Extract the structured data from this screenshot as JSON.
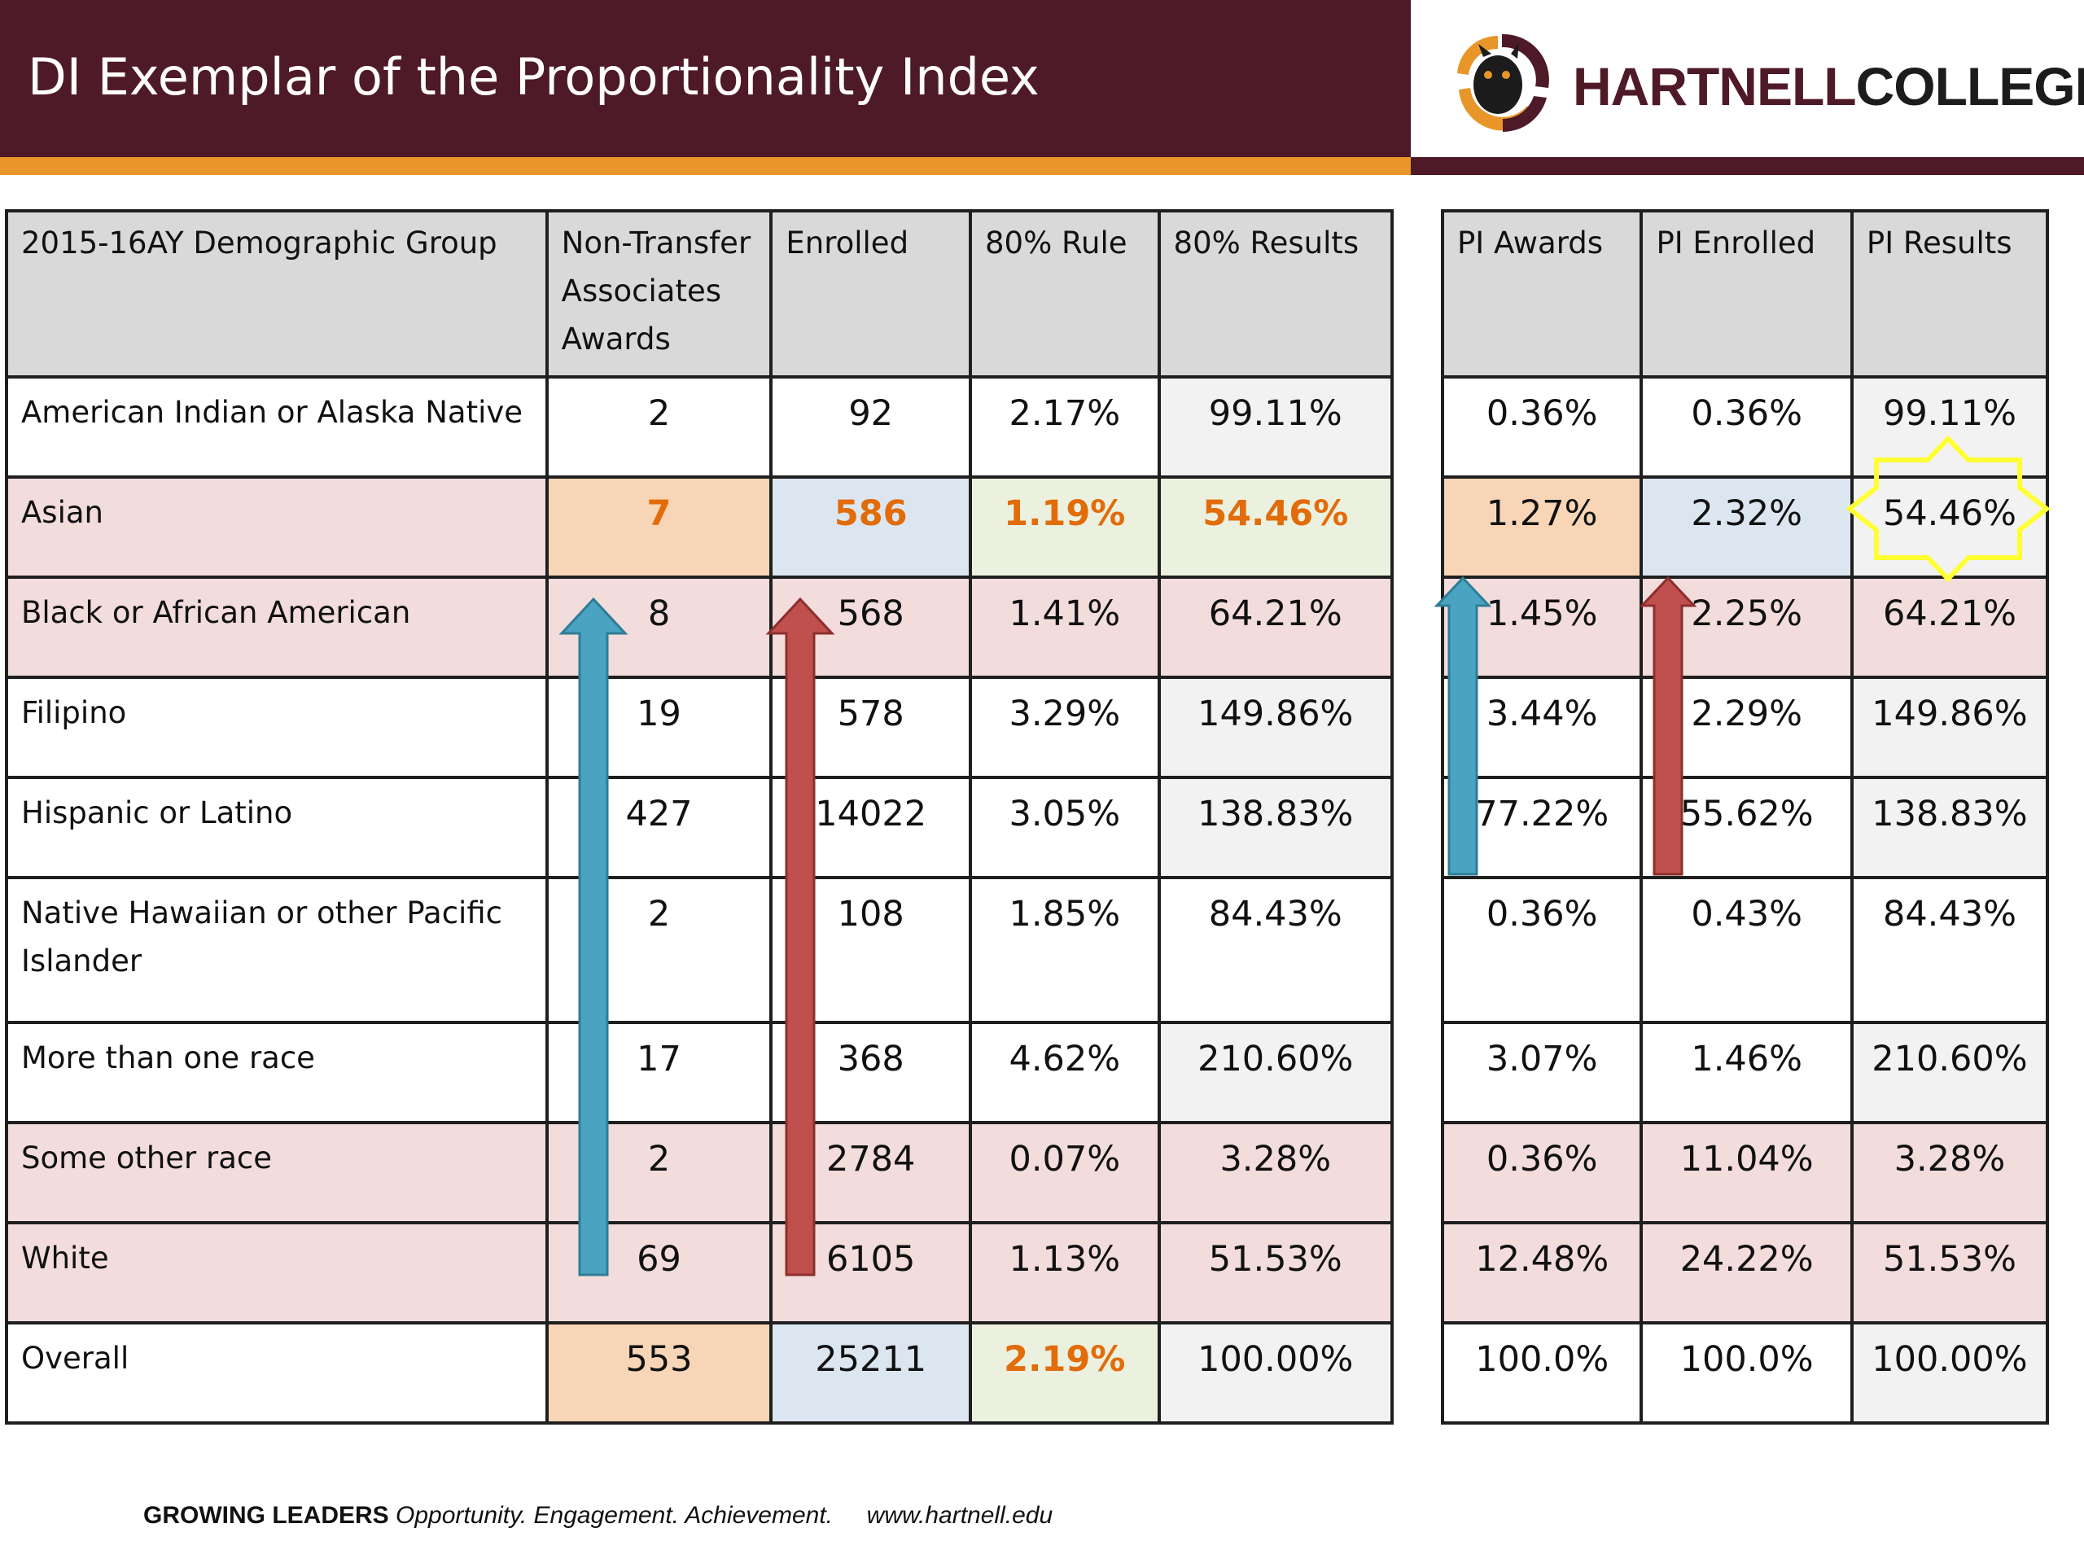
{
  "header": {
    "title": "DI Exemplar of the Proportionality Index",
    "logo": {
      "part1": "HARTNELL",
      "part2": "COLLEGE"
    }
  },
  "left_table": {
    "headers": [
      "2015-16AY Demographic Group",
      "Non-Transfer Associates Awards",
      "Enrolled",
      "80% Rule",
      "80% Results"
    ],
    "rows": [
      {
        "group": "American Indian or Alaska Native",
        "awards": "2",
        "enrolled": "92",
        "rule": "2.17%",
        "result": "99.11%"
      },
      {
        "group": "Asian",
        "awards": "7",
        "enrolled": "586",
        "rule": "1.19%",
        "result": "54.46%"
      },
      {
        "group": "Black or African American",
        "awards": "8",
        "enrolled": "568",
        "rule": "1.41%",
        "result": "64.21%"
      },
      {
        "group": "Filipino",
        "awards": "19",
        "enrolled": "578",
        "rule": "3.29%",
        "result": "149.86%"
      },
      {
        "group": "Hispanic or Latino",
        "awards": "427",
        "enrolled": "14022",
        "rule": "3.05%",
        "result": "138.83%"
      },
      {
        "group": "Native Hawaiian or other Pacific Islander",
        "awards": "2",
        "enrolled": "108",
        "rule": "1.85%",
        "result": "84.43%"
      },
      {
        "group": "More than one race",
        "awards": "17",
        "enrolled": "368",
        "rule": "4.62%",
        "result": "210.60%"
      },
      {
        "group": "Some other race",
        "awards": "2",
        "enrolled": "2784",
        "rule": "0.07%",
        "result": "3.28%"
      },
      {
        "group": "White",
        "awards": "69",
        "enrolled": "6105",
        "rule": "1.13%",
        "result": "51.53%"
      },
      {
        "group": "Overall",
        "awards": "553",
        "enrolled": "25211",
        "rule": "2.19%",
        "result": "100.00%"
      }
    ]
  },
  "right_table": {
    "headers": [
      "PI Awards",
      "PI Enrolled",
      "PI Results"
    ],
    "rows": [
      {
        "awards": "0.36%",
        "enrolled": "0.36%",
        "result": "99.11%"
      },
      {
        "awards": "1.27%",
        "enrolled": "2.32%",
        "result": "54.46%"
      },
      {
        "awards": "1.45%",
        "enrolled": "2.25%",
        "result": "64.21%"
      },
      {
        "awards": "3.44%",
        "enrolled": "2.29%",
        "result": "149.86%"
      },
      {
        "awards": "77.22%",
        "enrolled": "55.62%",
        "result": "138.83%"
      },
      {
        "awards": "0.36%",
        "enrolled": "0.43%",
        "result": "84.43%"
      },
      {
        "awards": "3.07%",
        "enrolled": "1.46%",
        "result": "210.60%"
      },
      {
        "awards": "0.36%",
        "enrolled": "11.04%",
        "result": "3.28%"
      },
      {
        "awards": "12.48%",
        "enrolled": "24.22%",
        "result": "51.53%"
      },
      {
        "awards": "100.0%",
        "enrolled": "100.0%",
        "result": "100.00%"
      }
    ]
  },
  "footer": {
    "tagline_bold": "GROWING LEADERS",
    "tagline_italic": "Opportunity. Engagement. Achievement.",
    "url": "www.hartnell.edu"
  },
  "colors": {
    "maroon": "#4f1a28",
    "orange": "#e8962a",
    "highlight_text": "#e26b0a",
    "arrow_blue": "#4aa3c0",
    "arrow_red": "#c0504d",
    "star_yellow": "#ffff33"
  }
}
